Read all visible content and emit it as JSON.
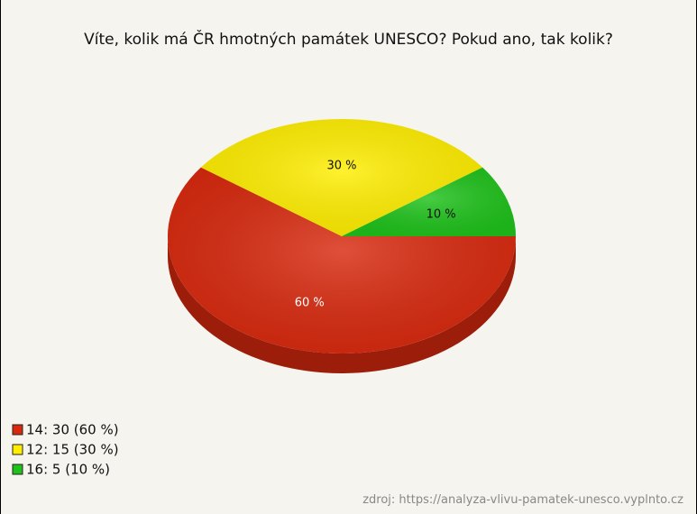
{
  "chart_data": {
    "type": "pie",
    "title": "Víte, kolik má ČR hmotných památek UNESCO? Pokud ano, tak kolik?",
    "categories": [
      "14: 30 (60 %)",
      "12: 15 (30 %)",
      "16: 5 (10 %)"
    ],
    "values": [
      60,
      30,
      10
    ],
    "value_labels": [
      "60 %",
      "30 %",
      "10 %"
    ],
    "colors": [
      "#d8290e",
      "#ffee00",
      "#1fc21b"
    ],
    "source": "zdroj: https://analyza-vlivu-pamatek-unesco.vyplnto.cz"
  }
}
